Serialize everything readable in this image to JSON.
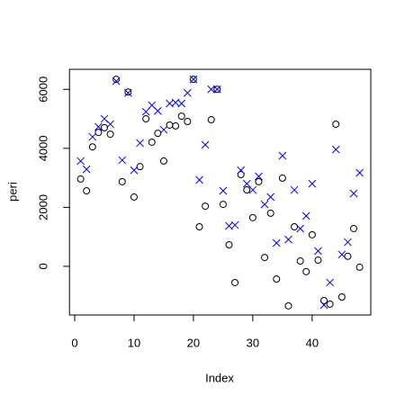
{
  "chart_data": {
    "type": "scatter",
    "x_label": "Index",
    "y_label": "peri",
    "x": [
      1,
      2,
      3,
      4,
      5,
      6,
      7,
      8,
      9,
      10,
      11,
      12,
      13,
      14,
      15,
      16,
      17,
      18,
      19,
      20,
      21,
      22,
      23,
      24,
      25,
      26,
      27,
      28,
      29,
      30,
      31,
      32,
      33,
      34,
      35,
      36,
      37,
      38,
      39,
      40,
      41,
      42,
      43,
      44,
      45,
      46,
      47,
      48
    ],
    "series": [
      {
        "color": "#000000",
        "marker": "circle",
        "values": [
          2960,
          2560,
          4050,
          4540,
          4700,
          4480,
          6340,
          2870,
          5910,
          2350,
          3380,
          5000,
          4210,
          4510,
          3570,
          4790,
          4760,
          5090,
          4910,
          6340,
          1340,
          2040,
          4970,
          6000,
          2100,
          730,
          -550,
          3110,
          2590,
          1650,
          2870,
          300,
          1800,
          -430,
          2990,
          -1340,
          1340,
          180,
          -180,
          1070,
          210,
          -1160,
          -1280,
          4820,
          -1040,
          340,
          1280,
          -30
        ]
      },
      {
        "color": "#0000ff",
        "marker": "x",
        "values": [
          3570,
          3290,
          4390,
          4730,
          5000,
          4820,
          6280,
          3600,
          5880,
          3260,
          4180,
          5240,
          5460,
          5270,
          4630,
          5520,
          5550,
          5520,
          5880,
          6340,
          2930,
          4120,
          6000,
          6000,
          2560,
          1370,
          1400,
          3260,
          2800,
          2590,
          3050,
          2100,
          2350,
          790,
          3750,
          910,
          2590,
          1280,
          1710,
          2800,
          520,
          -1310,
          -550,
          3960,
          400,
          820,
          2470,
          3170
        ]
      }
    ],
    "xlim": [
      -0.88,
      49.88
    ],
    "xticks": [
      0,
      10,
      20,
      30,
      40
    ],
    "ylim": [
      -1650,
      6680
    ],
    "yticks": [
      0,
      2000,
      4000,
      6000
    ]
  }
}
